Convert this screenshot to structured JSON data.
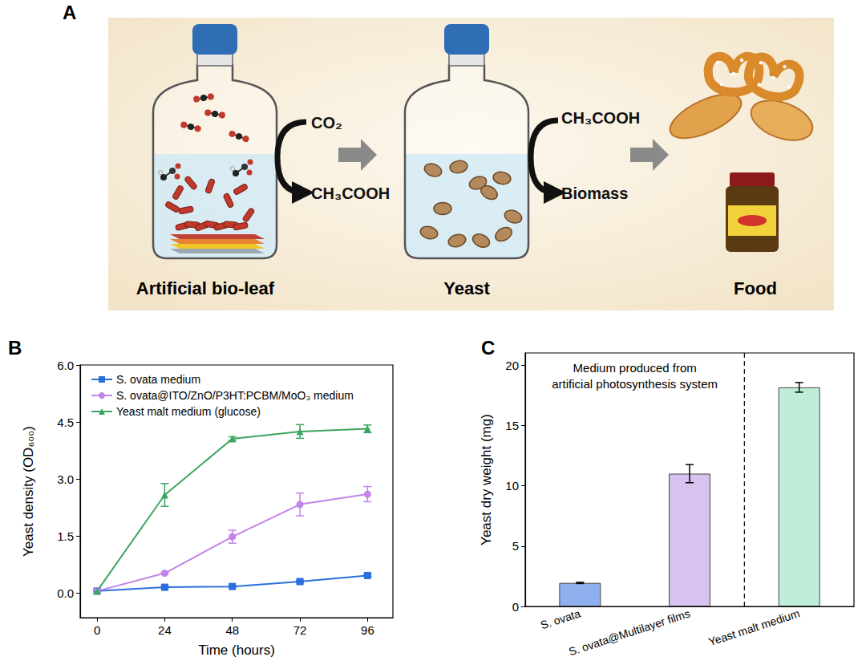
{
  "diagram": {
    "panel": "A",
    "labels": {
      "bio_leaf": "Artificial bio-leaf",
      "yeast": "Yeast",
      "food": "Food"
    },
    "arrows": [
      {
        "input": "CO₂",
        "output": "CH₃COOH"
      },
      {
        "input": "CH₃COOH",
        "output": "Biomass"
      }
    ]
  },
  "chart_data": [
    {
      "panel": "B",
      "type": "line",
      "x_label": "Time (hours)",
      "y_label": "Yeast density (OD₆₀₀)",
      "x": [
        0,
        24,
        48,
        72,
        96
      ],
      "xlim": [
        -6,
        105
      ],
      "xticks": [
        0,
        24,
        48,
        72,
        96
      ],
      "ylim": [
        -0.65,
        6
      ],
      "yticks": [
        {
          "value": 0,
          "label": "0.0"
        },
        1.5,
        {
          "value": 3,
          "label": "3.0"
        },
        4.5,
        {
          "value": 6,
          "label": "6.0"
        }
      ],
      "legend": "upper left",
      "series": [
        {
          "name": "S. ovata medium",
          "color": "#2a6fdb",
          "marker": "square",
          "values": [
            0.05,
            0.15,
            0.17,
            0.3,
            0.46
          ],
          "errors": [
            0.01,
            0.02,
            0.02,
            0.03,
            0.03
          ]
        },
        {
          "name": "S. ovata@ITO/ZnO/P3HT:PCBM/MoO₃ medium",
          "color": "#c184e8",
          "marker": "circle",
          "values": [
            0.05,
            0.52,
            1.48,
            2.33,
            2.6
          ],
          "errors": [
            0.01,
            0.03,
            0.17,
            0.3,
            0.2
          ]
        },
        {
          "name": "Yeast malt medium (glucose)",
          "color": "#3aa55f",
          "marker": "triangle",
          "values": [
            0.05,
            2.58,
            4.06,
            4.25,
            4.32
          ],
          "errors": [
            0.01,
            0.3,
            0.05,
            0.18,
            0.1
          ]
        }
      ]
    },
    {
      "panel": "C",
      "type": "bar",
      "y_label": "Yeast dry weight (mg)",
      "categories": [
        "S. ovata",
        "S. ovata@Multilayer films",
        "Yeast malt medium"
      ],
      "values": [
        1.95,
        11.0,
        18.15
      ],
      "errors": [
        0.05,
        0.75,
        0.4
      ],
      "colors": [
        "#8fb0ef",
        "#d8c2f0",
        "#bfeed8"
      ],
      "ylim": [
        0,
        21
      ],
      "yticks": [
        0,
        5,
        10,
        15,
        20
      ],
      "annotation": {
        "text": [
          "Medium produced from",
          "artificial photosynthesis system"
        ],
        "divider_after": "S. ovata@Multilayer films"
      }
    }
  ]
}
